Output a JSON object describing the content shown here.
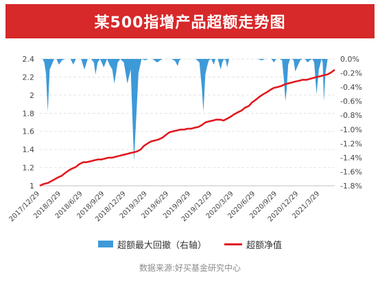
{
  "title": "某500指增产品超额走势图",
  "source": "数据来源:好买基金研究中心",
  "chart_data": {
    "type": "line",
    "x_tick_labels": [
      "2017/12/29",
      "2018/3/29",
      "2018/6/29",
      "2018/9/29",
      "2018/12/29",
      "2019/3/29",
      "2019/6/29",
      "2019/9/29",
      "2019/12/29",
      "2020/3/29",
      "2020/6/29",
      "2020/9/29",
      "2020/12/29",
      "2021/3/29"
    ],
    "left_axis": {
      "ticks": [
        "1",
        "1.2",
        "1.4",
        "1.6",
        "1.8",
        "2",
        "2.2",
        "2.4"
      ],
      "ylim": [
        1,
        2.4
      ]
    },
    "right_axis": {
      "ticks": [
        "0.0%",
        "-0.2%",
        "-0.4%",
        "-0.6%",
        "-0.8%",
        "-1.0%",
        "-1.2%",
        "-1.4%",
        "-1.6%",
        "-1.8%"
      ],
      "ylim": [
        -1.8,
        0
      ]
    },
    "series": [
      {
        "name": "超额最大回撤（右轴）",
        "type": "area",
        "axis": "right",
        "color": "#3d9ad8",
        "x": [
          "2017/12/29",
          "2018/1/10",
          "2018/1/17",
          "2018/1/24",
          "2018/2/1",
          "2018/2/9",
          "2018/2/28",
          "2018/3/10",
          "2018/3/20",
          "2018/4/2",
          "2018/4/14",
          "2018/4/25",
          "2018/5/8",
          "2018/5/20",
          "2018/5/31",
          "2018/6/12",
          "2018/6/22",
          "2018/7/6",
          "2018/7/20",
          "2018/8/3",
          "2018/8/15",
          "2018/8/22",
          "2018/8/31",
          "2018/9/10",
          "2018/9/17",
          "2018/9/26",
          "2018/10/10",
          "2018/10/20",
          "2018/11/1",
          "2018/11/10",
          "2018/11/24",
          "2018/12/5",
          "2018/12/20",
          "2019/1/4",
          "2019/1/18",
          "2019/2/1",
          "2019/2/20",
          "2019/3/5",
          "2019/3/20",
          "2019/4/2",
          "2019/4/20",
          "2019/5/10",
          "2019/6/1",
          "2019/6/20",
          "2019/7/10",
          "2019/7/25",
          "2019/8/5",
          "2019/8/12",
          "2019/8/20",
          "2019/9/10",
          "2019/10/1",
          "2019/10/20",
          "2019/11/5",
          "2019/11/15",
          "2019/11/22",
          "2019/11/30",
          "2019/12/8",
          "2019/12/15",
          "2019/12/25",
          "2020/1/5",
          "2020/1/12",
          "2020/1/22",
          "2020/2/3",
          "2020/2/10",
          "2020/2/17",
          "2020/2/25",
          "2020/3/1",
          "2020/3/10",
          "2020/3/25",
          "2020/4/10",
          "2020/4/25",
          "2020/5/10",
          "2020/5/25",
          "2020/6/10",
          "2020/6/25",
          "2020/7/10",
          "2020/7/25",
          "2020/8/10",
          "2020/8/25",
          "2020/9/5",
          "2020/9/15",
          "2020/9/25",
          "2020/10/10",
          "2020/10/20",
          "2020/10/28",
          "2020/11/3",
          "2020/11/8",
          "2020/11/15",
          "2020/11/23",
          "2020/12/1",
          "2020/12/8",
          "2020/12/15",
          "2020/12/25",
          "2021/1/5",
          "2021/1/15",
          "2021/1/25",
          "2021/2/5",
          "2021/2/15",
          "2021/2/25",
          "2021/3/5",
          "2021/3/15",
          "2021/3/25",
          "2021/4/5",
          "2021/4/10",
          "2021/4/15",
          "2021/4/22",
          "2021/5/1",
          "2021/5/10",
          "2021/5/20",
          "2021/5/31"
        ],
        "values": [
          0,
          0,
          -0.05,
          -0.2,
          -0.75,
          -0.15,
          0,
          0,
          -0.08,
          -0.02,
          0,
          0,
          0,
          -0.08,
          0,
          0,
          0,
          -0.15,
          0,
          0,
          -0.05,
          -0.22,
          -0.05,
          0,
          -0.05,
          -0.12,
          0,
          -0.08,
          -0.15,
          -0.35,
          -0.05,
          0,
          -0.05,
          -0.35,
          -0.15,
          -1.45,
          -0.2,
          0,
          -0.02,
          0,
          0,
          -0.05,
          0,
          0,
          0,
          -0.03,
          -0.1,
          -0.02,
          0,
          0,
          0,
          0,
          -0.05,
          -0.4,
          -0.75,
          -0.22,
          -0.1,
          -0.02,
          0,
          -0.08,
          0,
          0,
          -0.15,
          -0.05,
          0,
          -0.02,
          -0.12,
          0,
          0,
          0,
          0,
          0,
          0,
          0,
          0,
          0,
          -0.02,
          0,
          0,
          0,
          -0.05,
          0,
          0,
          -0.02,
          -0.3,
          -0.6,
          -0.45,
          -0.08,
          0,
          0,
          -0.02,
          -0.18,
          -0.1,
          -0.02,
          0,
          0,
          -0.05,
          -0.02,
          0,
          -0.05,
          -0.5,
          -0.15,
          0,
          -0.05,
          -0.6,
          -0.2,
          0,
          0,
          0,
          0
        ]
      },
      {
        "name": "超额净值",
        "type": "line",
        "axis": "left",
        "color": "#e0191f",
        "x": [
          "2017/12/29",
          "2018/1/15",
          "2018/2/1",
          "2018/2/15",
          "2018/3/1",
          "2018/3/15",
          "2018/4/1",
          "2018/4/15",
          "2018/5/1",
          "2018/5/15",
          "2018/6/1",
          "2018/6/15",
          "2018/7/1",
          "2018/7/15",
          "2018/8/1",
          "2018/8/15",
          "2018/9/1",
          "2018/9/15",
          "2018/10/1",
          "2018/10/15",
          "2018/11/1",
          "2018/11/15",
          "2018/12/1",
          "2018/12/15",
          "2019/1/1",
          "2019/1/15",
          "2019/2/1",
          "2019/2/15",
          "2019/3/1",
          "2019/3/15",
          "2019/4/1",
          "2019/4/15",
          "2019/5/1",
          "2019/5/15",
          "2019/6/1",
          "2019/6/15",
          "2019/7/1",
          "2019/7/15",
          "2019/8/1",
          "2019/8/15",
          "2019/9/1",
          "2019/9/15",
          "2019/10/1",
          "2019/10/15",
          "2019/11/1",
          "2019/11/15",
          "2019/12/1",
          "2019/12/15",
          "2020/1/1",
          "2020/1/15",
          "2020/2/1",
          "2020/2/15",
          "2020/3/1",
          "2020/3/15",
          "2020/4/1",
          "2020/4/15",
          "2020/5/1",
          "2020/5/15",
          "2020/6/1",
          "2020/6/15",
          "2020/7/1",
          "2020/7/15",
          "2020/8/1",
          "2020/8/15",
          "2020/9/1",
          "2020/9/15",
          "2020/10/1",
          "2020/10/15",
          "2020/11/1",
          "2020/11/15",
          "2020/12/1",
          "2020/12/15",
          "2021/1/1",
          "2021/1/15",
          "2021/2/1",
          "2021/2/15",
          "2021/3/1",
          "2021/3/15",
          "2021/4/1",
          "2021/4/15",
          "2021/5/1",
          "2021/5/15",
          "2021/5/31"
        ],
        "values": [
          1.0,
          1.02,
          1.03,
          1.05,
          1.07,
          1.09,
          1.11,
          1.14,
          1.17,
          1.19,
          1.21,
          1.24,
          1.26,
          1.26,
          1.27,
          1.28,
          1.29,
          1.29,
          1.3,
          1.31,
          1.31,
          1.32,
          1.33,
          1.34,
          1.35,
          1.36,
          1.37,
          1.38,
          1.4,
          1.44,
          1.47,
          1.49,
          1.5,
          1.51,
          1.53,
          1.56,
          1.59,
          1.6,
          1.61,
          1.62,
          1.62,
          1.63,
          1.63,
          1.64,
          1.65,
          1.67,
          1.7,
          1.71,
          1.72,
          1.73,
          1.73,
          1.72,
          1.74,
          1.76,
          1.79,
          1.81,
          1.83,
          1.86,
          1.88,
          1.92,
          1.95,
          1.98,
          2.01,
          2.03,
          2.06,
          2.08,
          2.09,
          2.1,
          2.12,
          2.13,
          2.14,
          2.15,
          2.16,
          2.17,
          2.17,
          2.18,
          2.19,
          2.2,
          2.21,
          2.22,
          2.23,
          2.25,
          2.28
        ]
      }
    ],
    "grid": true,
    "legend_position": "bottom"
  }
}
